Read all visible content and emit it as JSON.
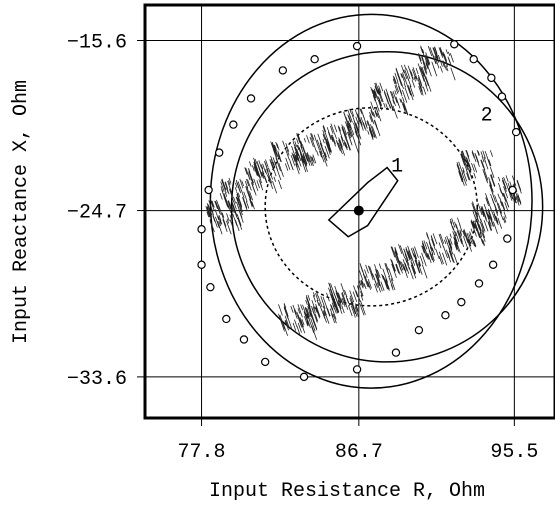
{
  "chart_data": {
    "type": "scatter",
    "title": "",
    "xlabel": "Input Resistance R, Ohm",
    "ylabel": "Input Reactance X, Ohm",
    "xlim": [
      74.6,
      97.8
    ],
    "ylim": [
      -35.8,
      -13.7
    ],
    "xticks": [
      77.8,
      86.7,
      95.5
    ],
    "xtick_labels": [
      "77.8",
      "86.7",
      "95.5"
    ],
    "yticks": [
      -15.6,
      -24.7,
      -33.6
    ],
    "ytick_labels": [
      "−15.6",
      "−24.7",
      "−33.6"
    ],
    "grid": true,
    "nominal_point": {
      "x": 86.7,
      "y": -24.7
    },
    "regions": [
      {
        "label": "1",
        "points": [
          [
            85.0,
            -25.2
          ],
          [
            86.1,
            -26.1
          ],
          [
            87.2,
            -25.5
          ],
          [
            88.9,
            -23.1
          ],
          [
            88.3,
            -22.4
          ],
          [
            87.2,
            -23.2
          ]
        ]
      },
      {
        "label": "",
        "style": "dotted",
        "cx": 87.4,
        "cy": -24.5,
        "rx": 6.0,
        "ry": 5.3
      },
      {
        "label": "2",
        "cx": 88.3,
        "cy": -24.5,
        "rx": 8.8,
        "ry": 8.3
      },
      {
        "label": "",
        "cx": 87.4,
        "cy": -24.2,
        "rx": 9.1,
        "ry": 10.0
      }
    ],
    "clusters": [
      {
        "x": 91.0,
        "y": -16.5
      },
      {
        "x": 89.6,
        "y": -17.5
      },
      {
        "x": 88.3,
        "y": -18.5
      },
      {
        "x": 86.8,
        "y": -19.8
      },
      {
        "x": 85.6,
        "y": -20.5
      },
      {
        "x": 84.0,
        "y": -21.2
      },
      {
        "x": 82.6,
        "y": -21.6
      },
      {
        "x": 81.2,
        "y": -22.5
      },
      {
        "x": 79.8,
        "y": -23.6
      },
      {
        "x": 79.0,
        "y": -24.7
      },
      {
        "x": 93.2,
        "y": -22.1
      },
      {
        "x": 94.8,
        "y": -23.4
      },
      {
        "x": 94.0,
        "y": -24.7
      },
      {
        "x": 92.8,
        "y": -25.7
      },
      {
        "x": 91.2,
        "y": -26.5
      },
      {
        "x": 89.4,
        "y": -27.1
      },
      {
        "x": 87.6,
        "y": -28.1
      },
      {
        "x": 85.9,
        "y": -29.2
      },
      {
        "x": 84.6,
        "y": -29.6
      },
      {
        "x": 83.1,
        "y": -30.3
      }
    ],
    "boundary_points": [
      [
        92.1,
        -15.8
      ],
      [
        93.2,
        -16.6
      ],
      [
        94.2,
        -17.6
      ],
      [
        94.8,
        -18.6
      ],
      [
        95.6,
        -20.5
      ],
      [
        95.4,
        -23.6
      ],
      [
        95.1,
        -26.2
      ],
      [
        94.3,
        -27.6
      ],
      [
        93.5,
        -28.6
      ],
      [
        92.5,
        -29.6
      ],
      [
        91.6,
        -30.3
      ],
      [
        90.1,
        -31.1
      ],
      [
        88.8,
        -32.3
      ],
      [
        86.6,
        -33.2
      ],
      [
        83.6,
        -33.6
      ],
      [
        81.4,
        -32.8
      ],
      [
        80.2,
        -31.6
      ],
      [
        79.2,
        -30.5
      ],
      [
        78.3,
        -28.8
      ],
      [
        77.8,
        -27.6
      ],
      [
        77.8,
        -25.7
      ],
      [
        78.2,
        -23.6
      ],
      [
        78.8,
        -21.6
      ],
      [
        79.6,
        -20.1
      ],
      [
        80.6,
        -18.7
      ],
      [
        82.4,
        -17.2
      ],
      [
        84.2,
        -16.6
      ],
      [
        86.6,
        -15.9
      ]
    ]
  }
}
